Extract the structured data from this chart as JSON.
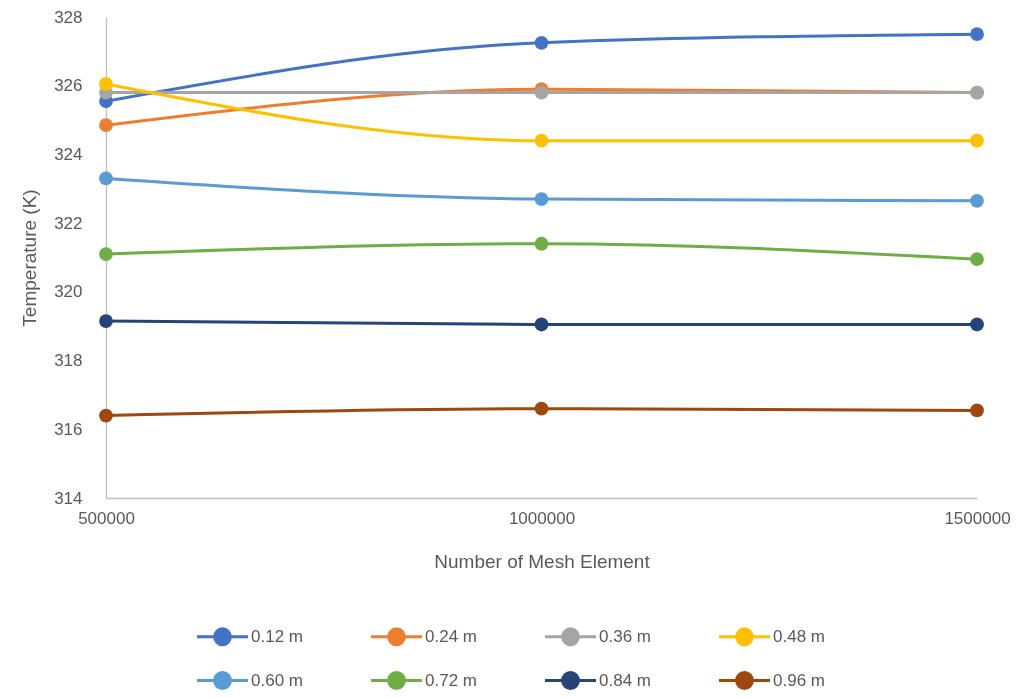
{
  "chart_data": {
    "type": "line",
    "xlabel": "Number of Mesh Element",
    "ylabel": "Temperature (K)",
    "x": [
      500000,
      1000000,
      1500000
    ],
    "xlim": [
      500000,
      1500000
    ],
    "xticks": [
      500000,
      1000000,
      1500000
    ],
    "ylim": [
      314,
      328
    ],
    "yticks": [
      314,
      316,
      318,
      320,
      322,
      324,
      326,
      328
    ],
    "grid": false,
    "legend": "bottom",
    "marker": "circle",
    "line_style": "solid",
    "series": [
      {
        "name": "0.12 m",
        "color": "#4472c4",
        "values": [
          325.55,
          327.25,
          327.5
        ]
      },
      {
        "name": "0.24 m",
        "color": "#ed7d31",
        "values": [
          324.85,
          325.9,
          325.8
        ]
      },
      {
        "name": "0.36 m",
        "color": "#a5a5a5",
        "values": [
          325.8,
          325.8,
          325.8
        ]
      },
      {
        "name": "0.48 m",
        "color": "#ffc000",
        "values": [
          326.05,
          324.4,
          324.4
        ]
      },
      {
        "name": "0.60 m",
        "color": "#5b9bd5",
        "values": [
          323.3,
          322.7,
          322.65
        ]
      },
      {
        "name": "0.72 m",
        "color": "#70ad47",
        "values": [
          321.1,
          321.4,
          320.95
        ]
      },
      {
        "name": "0.84 m",
        "color": "#264478",
        "values": [
          319.15,
          319.05,
          319.05
        ]
      },
      {
        "name": "0.96 m",
        "color": "#9e480e",
        "values": [
          316.4,
          316.6,
          316.55
        ]
      }
    ]
  }
}
